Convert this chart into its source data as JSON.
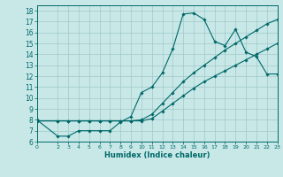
{
  "title": "",
  "xlabel": "Humidex (Indice chaleur)",
  "ylabel": "",
  "background_color": "#c8e8e8",
  "grid_color": "#a0c8c8",
  "line_color": "#006868",
  "xlim": [
    0,
    23
  ],
  "ylim": [
    6,
    18.5
  ],
  "xticks": [
    0,
    2,
    3,
    4,
    5,
    6,
    7,
    8,
    9,
    10,
    11,
    12,
    13,
    14,
    15,
    16,
    17,
    18,
    19,
    20,
    21,
    22,
    23
  ],
  "yticks": [
    6,
    7,
    8,
    9,
    10,
    11,
    12,
    13,
    14,
    15,
    16,
    17,
    18
  ],
  "line1_x": [
    0,
    2,
    3,
    4,
    5,
    6,
    7,
    8,
    9,
    10,
    11,
    12,
    13,
    14,
    15,
    16,
    17,
    18,
    19,
    20,
    21,
    22,
    23
  ],
  "line1_y": [
    8,
    6.5,
    6.5,
    7.0,
    7.0,
    7.0,
    7.0,
    7.8,
    8.3,
    10.5,
    11.0,
    12.3,
    14.5,
    17.7,
    17.8,
    17.2,
    15.2,
    14.8,
    16.3,
    14.2,
    13.8,
    12.2,
    12.2
  ],
  "line2_x": [
    0,
    2,
    3,
    4,
    5,
    6,
    7,
    8,
    9,
    10,
    11,
    12,
    13,
    14,
    15,
    16,
    17,
    18,
    19,
    20,
    21,
    22,
    23
  ],
  "line2_y": [
    7.9,
    7.9,
    7.9,
    7.9,
    7.9,
    7.9,
    7.9,
    7.9,
    7.9,
    8.0,
    8.5,
    9.5,
    10.5,
    11.5,
    12.3,
    13.0,
    13.7,
    14.4,
    15.0,
    15.6,
    16.2,
    16.8,
    17.2
  ],
  "line3_x": [
    0,
    2,
    3,
    4,
    5,
    6,
    7,
    8,
    9,
    10,
    11,
    12,
    13,
    14,
    15,
    16,
    17,
    18,
    19,
    20,
    21,
    22,
    23
  ],
  "line3_y": [
    7.9,
    7.9,
    7.9,
    7.9,
    7.9,
    7.9,
    7.9,
    7.9,
    7.9,
    7.9,
    8.1,
    8.8,
    9.5,
    10.2,
    10.9,
    11.5,
    12.0,
    12.5,
    13.0,
    13.5,
    14.0,
    14.5,
    15.0
  ]
}
